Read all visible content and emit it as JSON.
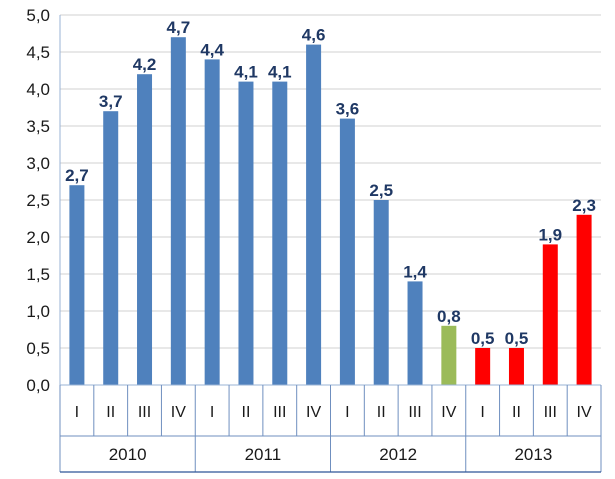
{
  "chart_data": {
    "type": "bar",
    "title": "",
    "xlabel": "",
    "ylabel": "",
    "ylim": [
      0,
      5
    ],
    "yticks": [
      "0,0",
      "0,5",
      "1,0",
      "1,5",
      "2,0",
      "2,5",
      "3,0",
      "3,5",
      "4,0",
      "4,5",
      "5,0"
    ],
    "grid": true,
    "legend": "none",
    "groups": [
      {
        "label": "2010",
        "categories": [
          "I",
          "II",
          "III",
          "IV"
        ]
      },
      {
        "label": "2011",
        "categories": [
          "I",
          "II",
          "III",
          "IV"
        ]
      },
      {
        "label": "2012",
        "categories": [
          "I",
          "II",
          "III",
          "IV"
        ]
      },
      {
        "label": "2013",
        "categories": [
          "I",
          "II",
          "III",
          "IV"
        ]
      }
    ],
    "categories": [
      "I",
      "II",
      "III",
      "IV",
      "I",
      "II",
      "III",
      "IV",
      "I",
      "II",
      "III",
      "IV",
      "I",
      "II",
      "III",
      "IV"
    ],
    "values": [
      2.7,
      3.7,
      4.2,
      4.7,
      4.4,
      4.1,
      4.1,
      4.6,
      3.6,
      2.5,
      1.4,
      0.8,
      0.5,
      0.5,
      1.9,
      2.3
    ],
    "value_labels": [
      "2,7",
      "3,7",
      "4,2",
      "4,7",
      "4,4",
      "4,1",
      "4,1",
      "4,6",
      "3,6",
      "2,5",
      "1,4",
      "0,8",
      "0,5",
      "0,5",
      "1,9",
      "2,3"
    ],
    "bar_colors": [
      "#4f81bd",
      "#4f81bd",
      "#4f81bd",
      "#4f81bd",
      "#4f81bd",
      "#4f81bd",
      "#4f81bd",
      "#4f81bd",
      "#4f81bd",
      "#4f81bd",
      "#4f81bd",
      "#9bbb59",
      "#ff0000",
      "#ff0000",
      "#ff0000",
      "#ff0000"
    ]
  }
}
